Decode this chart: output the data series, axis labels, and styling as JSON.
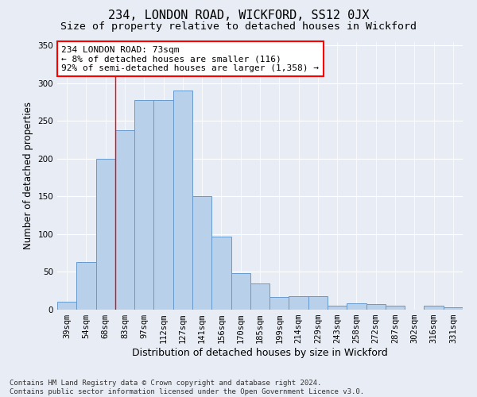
{
  "title": "234, LONDON ROAD, WICKFORD, SS12 0JX",
  "subtitle": "Size of property relative to detached houses in Wickford",
  "xlabel": "Distribution of detached houses by size in Wickford",
  "ylabel": "Number of detached properties",
  "categories": [
    "39sqm",
    "54sqm",
    "68sqm",
    "83sqm",
    "97sqm",
    "112sqm",
    "127sqm",
    "141sqm",
    "156sqm",
    "170sqm",
    "185sqm",
    "199sqm",
    "214sqm",
    "229sqm",
    "243sqm",
    "258sqm",
    "272sqm",
    "287sqm",
    "302sqm",
    "316sqm",
    "331sqm"
  ],
  "values": [
    10,
    63,
    200,
    238,
    278,
    278,
    290,
    150,
    97,
    48,
    35,
    17,
    18,
    18,
    5,
    8,
    7,
    5,
    0,
    5,
    3
  ],
  "bar_color": "#b8d0ea",
  "bar_edgecolor": "#6699cc",
  "bar_linewidth": 0.7,
  "annotation_text": "234 LONDON ROAD: 73sqm\n← 8% of detached houses are smaller (116)\n92% of semi-detached houses are larger (1,358) →",
  "red_line_x": 2.5,
  "ylim": [
    0,
    355
  ],
  "yticks": [
    0,
    50,
    100,
    150,
    200,
    250,
    300,
    350
  ],
  "bg_color": "#e8ecf5",
  "plot_bg_color": "#e8ecf5",
  "grid_color": "#ffffff",
  "footer_line1": "Contains HM Land Registry data © Crown copyright and database right 2024.",
  "footer_line2": "Contains public sector information licensed under the Open Government Licence v3.0.",
  "title_fontsize": 11,
  "subtitle_fontsize": 9.5,
  "tick_fontsize": 7.5,
  "ylabel_fontsize": 8.5,
  "xlabel_fontsize": 9,
  "annotation_fontsize": 8,
  "footer_fontsize": 6.5
}
